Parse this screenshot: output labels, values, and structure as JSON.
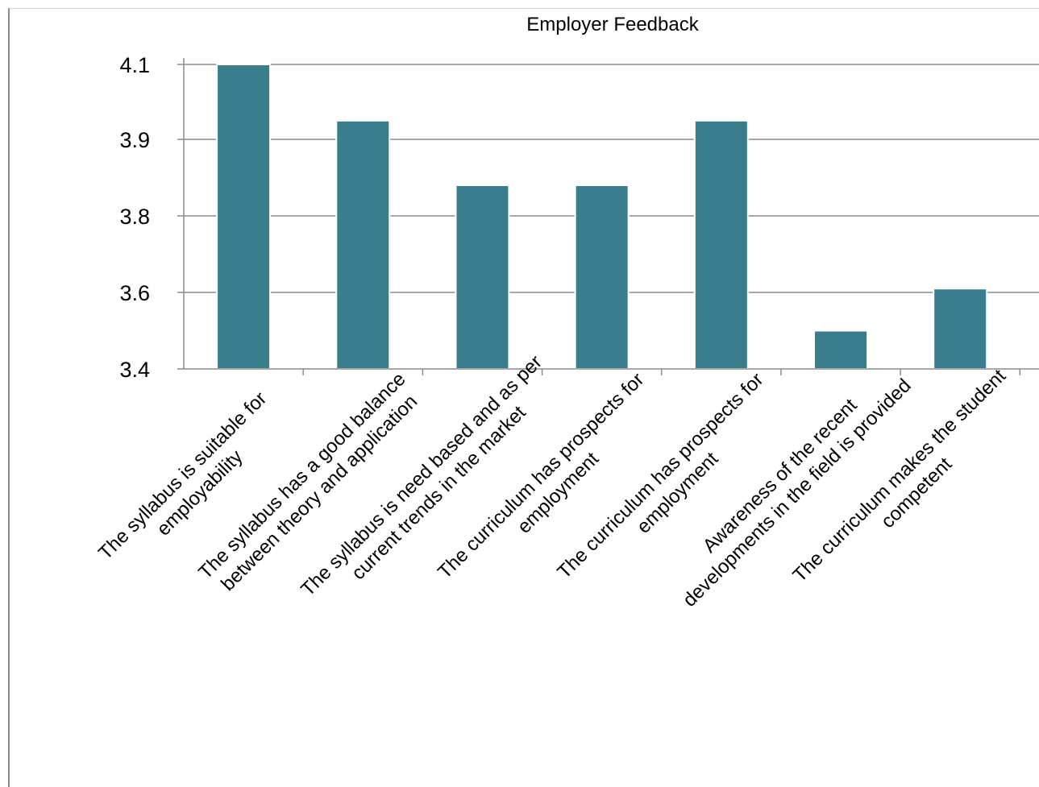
{
  "chart_data": {
    "type": "bar",
    "title": "Employer Feedback",
    "xlabel": "",
    "ylabel": "",
    "categories": [
      [
        "The syllabus is suitable for",
        "employability"
      ],
      [
        "The syllabus has a good balance",
        "between theory and application"
      ],
      [
        "The syllabus is need based and as per",
        "current trends in the market"
      ],
      [
        "The curriculum has prospects for",
        "employment"
      ],
      [
        "The curriculum has prospects for",
        "employment"
      ],
      [
        "Awareness of the recent",
        "developments in the field is provided"
      ],
      [
        "The curriculum makes the student",
        "competent"
      ]
    ],
    "values": [
      4.1,
      3.95,
      null,
      3.84,
      3.95,
      3.5,
      3.61
    ],
    "y_ticks": [
      "3.4",
      "3.6",
      "3.8",
      "3.9",
      "4.1"
    ],
    "ylim": [
      3.4,
      4.2
    ],
    "grid": true,
    "bar_color": "#3a7e8e",
    "grid_color": "#8c8c8c"
  }
}
